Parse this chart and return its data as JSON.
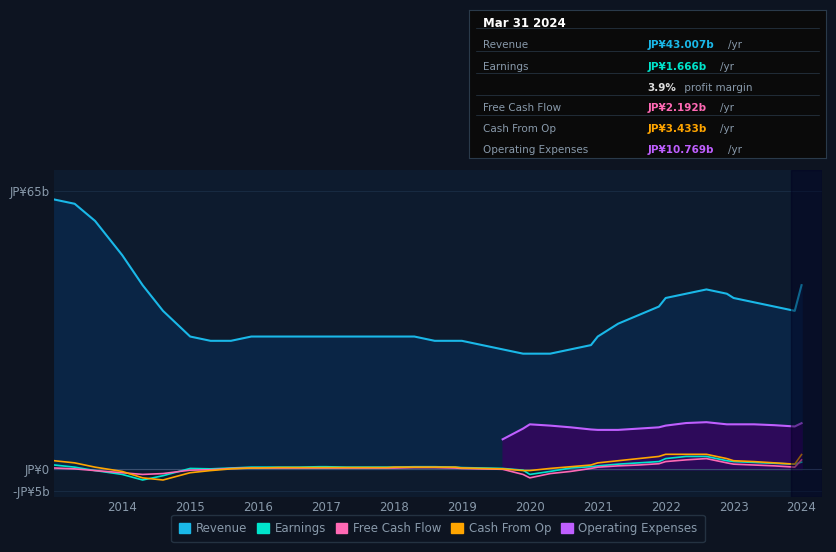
{
  "bg_color": "#0d1421",
  "plot_bg_color": "#0d1b2e",
  "grid_color": "#1a2d45",
  "text_color": "#8899aa",
  "title_color": "#ffffff",
  "years": [
    2013.0,
    2013.3,
    2013.6,
    2014.0,
    2014.3,
    2014.6,
    2015.0,
    2015.3,
    2015.6,
    2015.9,
    2016.0,
    2016.3,
    2016.6,
    2016.9,
    2017.0,
    2017.3,
    2017.6,
    2017.9,
    2018.0,
    2018.3,
    2018.6,
    2018.9,
    2019.0,
    2019.3,
    2019.6,
    2019.9,
    2020.0,
    2020.3,
    2020.6,
    2020.9,
    2021.0,
    2021.3,
    2021.6,
    2021.9,
    2022.0,
    2022.3,
    2022.6,
    2022.9,
    2023.0,
    2023.3,
    2023.6,
    2023.9,
    2024.0
  ],
  "revenue": [
    63,
    62,
    58,
    50,
    43,
    37,
    31,
    30,
    30,
    31,
    31,
    31,
    31,
    31,
    31,
    31,
    31,
    31,
    31,
    31,
    30,
    30,
    30,
    29,
    28,
    27,
    27,
    27,
    28,
    29,
    31,
    34,
    36,
    38,
    40,
    41,
    42,
    41,
    40,
    39,
    38,
    37,
    43
  ],
  "earnings": [
    1.0,
    0.5,
    -0.3,
    -1.2,
    -2.5,
    -1.5,
    0.2,
    0.1,
    0.3,
    0.5,
    0.5,
    0.5,
    0.5,
    0.6,
    0.6,
    0.5,
    0.5,
    0.5,
    0.5,
    0.6,
    0.6,
    0.5,
    0.4,
    0.3,
    0.2,
    -0.2,
    -1.2,
    -0.5,
    0.3,
    0.6,
    0.8,
    1.2,
    1.5,
    1.8,
    2.5,
    3.0,
    3.0,
    2.0,
    1.8,
    1.6,
    1.4,
    1.2,
    1.666
  ],
  "free_cash_flow": [
    0.3,
    0.1,
    -0.3,
    -0.8,
    -1.2,
    -1.0,
    -0.2,
    -0.1,
    0.2,
    0.3,
    0.3,
    0.3,
    0.3,
    0.3,
    0.3,
    0.3,
    0.3,
    0.3,
    0.3,
    0.4,
    0.4,
    0.3,
    0.2,
    0.1,
    0.0,
    -1.2,
    -2.0,
    -1.0,
    -0.5,
    0.2,
    0.5,
    0.8,
    1.0,
    1.3,
    1.8,
    2.2,
    2.5,
    1.5,
    1.2,
    1.0,
    0.8,
    0.5,
    2.192
  ],
  "cash_from_op": [
    2.0,
    1.5,
    0.5,
    -0.5,
    -2.0,
    -2.5,
    -0.8,
    -0.3,
    0.1,
    0.3,
    0.3,
    0.4,
    0.4,
    0.4,
    0.4,
    0.4,
    0.4,
    0.4,
    0.5,
    0.5,
    0.5,
    0.5,
    0.3,
    0.2,
    0.1,
    -0.3,
    -0.3,
    0.2,
    0.6,
    1.0,
    1.5,
    2.0,
    2.5,
    3.0,
    3.5,
    3.5,
    3.5,
    2.5,
    2.0,
    1.8,
    1.5,
    1.2,
    3.433
  ],
  "op_expenses_years": [
    2019.6,
    2019.9,
    2020.0,
    2020.3,
    2020.6,
    2020.9,
    2021.0,
    2021.3,
    2021.6,
    2021.9,
    2022.0,
    2022.3,
    2022.6,
    2022.9,
    2023.0,
    2023.3,
    2023.6,
    2023.9,
    2024.0
  ],
  "op_expenses": [
    7.0,
    9.5,
    10.5,
    10.2,
    9.8,
    9.3,
    9.2,
    9.2,
    9.5,
    9.8,
    10.2,
    10.8,
    11.0,
    10.5,
    10.5,
    10.5,
    10.3,
    10.0,
    10.769
  ],
  "ylim": [
    -6.5,
    70
  ],
  "yticks": [
    -5,
    0,
    65
  ],
  "ytick_labels": [
    "-JP¥5b",
    "JP¥0",
    "JP¥65b"
  ],
  "xlim": [
    2013.0,
    2024.3
  ],
  "revenue_color": "#1ab8e8",
  "earnings_color": "#00e5cc",
  "fcf_color": "#ff69b4",
  "cashop_color": "#ffa500",
  "opex_line_color": "#bf5fff",
  "opex_fill_color": "#2d0a5a",
  "opex_fill_top_color": "#7b2fbf",
  "revenue_fill_color": "#0a2545",
  "dark_overlay_start": 2023.85,
  "info_box": {
    "date": "Mar 31 2024",
    "rows": [
      {
        "label": "Revenue",
        "value": "JP¥43.007b",
        "unit": "/yr",
        "color": "#1ab8e8"
      },
      {
        "label": "Earnings",
        "value": "JP¥1.666b",
        "unit": "/yr",
        "color": "#00e5cc"
      },
      {
        "label": "",
        "value": "3.9%",
        "unit": " profit margin",
        "color": "#dddddd"
      },
      {
        "label": "Free Cash Flow",
        "value": "JP¥2.192b",
        "unit": "/yr",
        "color": "#ff69b4"
      },
      {
        "label": "Cash From Op",
        "value": "JP¥3.433b",
        "unit": "/yr",
        "color": "#ffa500"
      },
      {
        "label": "Operating Expenses",
        "value": "JP¥10.769b",
        "unit": "/yr",
        "color": "#bf5fff"
      }
    ]
  },
  "legend_items": [
    {
      "label": "Revenue",
      "color": "#1ab8e8"
    },
    {
      "label": "Earnings",
      "color": "#00e5cc"
    },
    {
      "label": "Free Cash Flow",
      "color": "#ff69b4"
    },
    {
      "label": "Cash From Op",
      "color": "#ffa500"
    },
    {
      "label": "Operating Expenses",
      "color": "#bf5fff"
    }
  ]
}
